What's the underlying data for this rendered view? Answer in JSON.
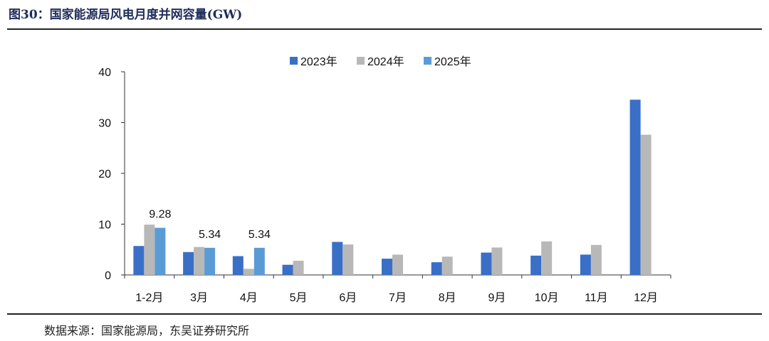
{
  "header": {
    "title": "图30：国家能源局风电月度并网容量(GW)"
  },
  "footer": {
    "source": "数据来源：国家能源局，东吴证券研究所"
  },
  "chart_data": {
    "type": "bar",
    "title": "",
    "xlabel": "",
    "ylabel": "",
    "ylim": [
      0,
      40
    ],
    "yticks": [
      0,
      10,
      20,
      30,
      40
    ],
    "grid": false,
    "legend_position": "top",
    "categories": [
      "1-2月",
      "3月",
      "4月",
      "5月",
      "6月",
      "7月",
      "8月",
      "9月",
      "10月",
      "11月",
      "12月"
    ],
    "series": [
      {
        "name": "2023年",
        "color": "#3a6fc7",
        "values": [
          5.7,
          4.5,
          3.7,
          2.0,
          6.5,
          3.2,
          2.5,
          4.4,
          3.8,
          4.0,
          34.5
        ]
      },
      {
        "name": "2024年",
        "color": "#b8b8b8",
        "values": [
          9.9,
          5.5,
          1.2,
          2.8,
          6.0,
          4.0,
          3.6,
          5.4,
          6.6,
          5.9,
          27.6
        ]
      },
      {
        "name": "2025年",
        "color": "#5b9bd5",
        "values": [
          9.28,
          5.34,
          5.34,
          null,
          null,
          null,
          null,
          null,
          null,
          null,
          null
        ]
      }
    ],
    "data_labels": [
      {
        "series": 2,
        "index": 0,
        "text": "9.28"
      },
      {
        "series": 2,
        "index": 1,
        "text": "5.34"
      },
      {
        "series": 2,
        "index": 2,
        "text": "5.34"
      }
    ]
  }
}
